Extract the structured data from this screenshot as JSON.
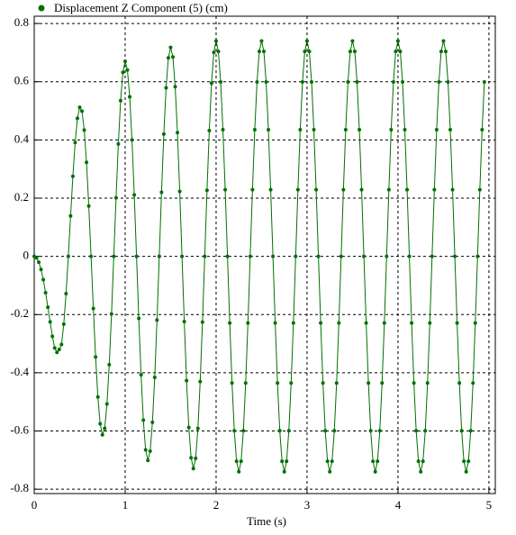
{
  "chart_data": {
    "type": "line",
    "xlabel": "Time (s)",
    "x": [
      0,
      0.025,
      0.05,
      0.075,
      0.1,
      0.125,
      0.15,
      0.175,
      0.2,
      0.225,
      0.25,
      0.275,
      0.3,
      0.325,
      0.35,
      0.375,
      0.4,
      0.425,
      0.45,
      0.475,
      0.5,
      0.525,
      0.55,
      0.575,
      0.6,
      0.625,
      0.65,
      0.675,
      0.7,
      0.725,
      0.75,
      0.775,
      0.8,
      0.825,
      0.85,
      0.875,
      0.9,
      0.925,
      0.95,
      0.975,
      1,
      1.025,
      1.05,
      1.075,
      1.1,
      1.125,
      1.15,
      1.175,
      1.2,
      1.225,
      1.25,
      1.275,
      1.3,
      1.325,
      1.35,
      1.375,
      1.4,
      1.425,
      1.45,
      1.475,
      1.5,
      1.525,
      1.55,
      1.575,
      1.6,
      1.625,
      1.65,
      1.675,
      1.7,
      1.725,
      1.75,
      1.775,
      1.8,
      1.825,
      1.85,
      1.875,
      1.9,
      1.925,
      1.95,
      1.975,
      2,
      2.025,
      2.05,
      2.075,
      2.1,
      2.125,
      2.15,
      2.175,
      2.2,
      2.225,
      2.25,
      2.275,
      2.3,
      2.325,
      2.35,
      2.375,
      2.4,
      2.425,
      2.45,
      2.475,
      2.5,
      2.525,
      2.55,
      2.575,
      2.6,
      2.625,
      2.65,
      2.675,
      2.7,
      2.725,
      2.75,
      2.775,
      2.8,
      2.825,
      2.85,
      2.875,
      2.9,
      2.925,
      2.95,
      2.975,
      3,
      3.025,
      3.05,
      3.075,
      3.1,
      3.125,
      3.15,
      3.175,
      3.2,
      3.225,
      3.25,
      3.275,
      3.3,
      3.325,
      3.35,
      3.375,
      3.4,
      3.425,
      3.45,
      3.475,
      3.5,
      3.525,
      3.55,
      3.575,
      3.6,
      3.625,
      3.65,
      3.675,
      3.7,
      3.725,
      3.75,
      3.775,
      3.8,
      3.825,
      3.85,
      3.875,
      3.9,
      3.925,
      3.95,
      3.975,
      4,
      4.025,
      4.05,
      4.075,
      4.1,
      4.125,
      4.15,
      4.175,
      4.2,
      4.225,
      4.25,
      4.275,
      4.3,
      4.325,
      4.35,
      4.375,
      4.4,
      4.425,
      4.45,
      4.475,
      4.5,
      4.525,
      4.55,
      4.575,
      4.6,
      4.625,
      4.65,
      4.675,
      4.7,
      4.725,
      4.75,
      4.775,
      4.8,
      4.825,
      4.85,
      4.875,
      4.9,
      4.925,
      4.95
    ],
    "series": [
      {
        "name": "Displacement Z Component (5) (cm)",
        "color": "#007000",
        "values": [
          0,
          -0.005,
          -0.02,
          -0.045,
          -0.08,
          -0.125,
          -0.175,
          -0.225,
          -0.275,
          -0.315,
          -0.33,
          -0.32,
          -0.303,
          -0.233,
          -0.128,
          0,
          0.139,
          0.275,
          0.391,
          0.474,
          0.512,
          0.499,
          0.434,
          0.323,
          0.173,
          0,
          -0.179,
          -0.346,
          -0.483,
          -0.575,
          -0.613,
          -0.591,
          -0.507,
          -0.372,
          -0.198,
          0,
          0.201,
          0.386,
          0.535,
          0.632,
          0.67,
          0.64,
          0.548,
          0.4,
          0.211,
          0,
          -0.213,
          -0.407,
          -0.563,
          -0.665,
          -0.701,
          -0.669,
          -0.57,
          -0.416,
          -0.219,
          0,
          0.22,
          0.42,
          0.579,
          0.682,
          0.718,
          0.685,
          0.583,
          0.425,
          0.223,
          0,
          -0.224,
          -0.427,
          -0.588,
          -0.692,
          -0.729,
          -0.694,
          -0.591,
          -0.43,
          -0.226,
          0,
          0.227,
          0.432,
          0.595,
          0.701,
          0.74,
          0.704,
          0.599,
          0.435,
          0.229,
          0,
          -0.229,
          -0.435,
          -0.599,
          -0.704,
          -0.74,
          -0.704,
          -0.599,
          -0.435,
          -0.229,
          0,
          0.229,
          0.435,
          0.599,
          0.704,
          0.74,
          0.704,
          0.599,
          0.435,
          0.229,
          0,
          -0.229,
          -0.435,
          -0.599,
          -0.704,
          -0.74,
          -0.704,
          -0.599,
          -0.435,
          -0.229,
          0,
          0.229,
          0.435,
          0.599,
          0.704,
          0.74,
          0.704,
          0.599,
          0.435,
          0.229,
          0,
          -0.229,
          -0.435,
          -0.599,
          -0.704,
          -0.74,
          -0.704,
          -0.599,
          -0.435,
          -0.229,
          0,
          0.229,
          0.435,
          0.599,
          0.704,
          0.74,
          0.704,
          0.599,
          0.435,
          0.229,
          0,
          -0.229,
          -0.435,
          -0.599,
          -0.704,
          -0.74,
          -0.704,
          -0.599,
          -0.435,
          -0.229,
          0,
          0.229,
          0.435,
          0.599,
          0.704,
          0.74,
          0.704,
          0.599,
          0.435,
          0.229,
          0,
          -0.229,
          -0.435,
          -0.599,
          -0.704,
          -0.74,
          -0.704,
          -0.599,
          -0.435,
          -0.229,
          0,
          0.229,
          0.435,
          0.599,
          0.704,
          0.74,
          0.704,
          0.599,
          0.435,
          0.229,
          0,
          -0.229,
          -0.435,
          -0.599,
          -0.704,
          -0.74,
          -0.704,
          -0.599,
          -0.435,
          -0.229,
          0,
          0.229,
          0.435,
          0.599
        ]
      }
    ],
    "xlim": [
      0,
      5.07
    ],
    "xticks": [
      0,
      1,
      2,
      3,
      4,
      5
    ],
    "ylim": [
      -0.815,
      0.825
    ],
    "yticks": [
      -0.8,
      -0.6,
      -0.4,
      -0.2,
      0,
      0.2,
      0.4,
      0.6,
      0.8
    ],
    "grid": true,
    "legend": "top"
  }
}
